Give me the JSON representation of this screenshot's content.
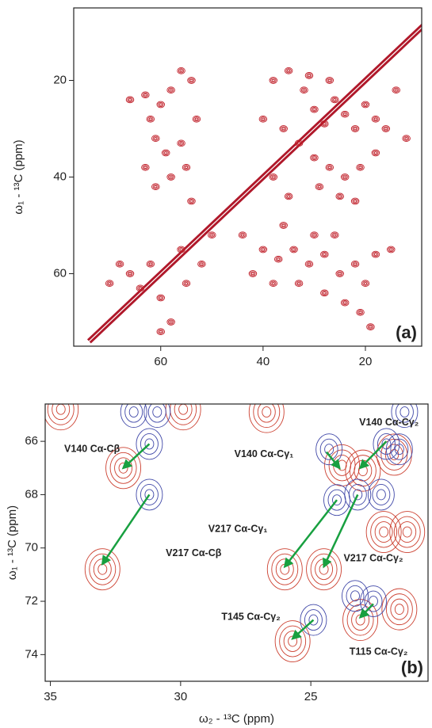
{
  "chart_data": [
    {
      "type": "contour",
      "xlim": [
        77,
        9
      ],
      "ylim": [
        5,
        75
      ],
      "xticks": [
        60,
        40,
        20
      ],
      "yticks": [
        20,
        40,
        60
      ],
      "ylabel": "ω₁ - ¹³C (ppm)",
      "panel_label": "(a)",
      "diagonal": {
        "x": [
          74,
          8
        ],
        "y": [
          74,
          8
        ],
        "color": "#b0182a"
      },
      "series": [
        {
          "color": "#c0202a",
          "x": [
            66,
            63,
            62,
            60,
            58,
            56,
            54,
            61,
            59,
            56,
            53,
            55,
            58,
            61,
            54,
            63,
            66,
            64,
            62,
            60,
            58,
            60,
            55,
            52,
            56,
            50,
            68,
            70,
            38,
            35,
            32,
            30,
            28,
            26,
            24,
            22,
            20,
            18,
            36,
            40,
            33,
            30,
            27,
            24,
            21,
            18,
            16,
            38,
            35,
            29,
            25,
            22,
            14,
            12,
            31,
            27,
            40,
            37,
            34,
            31,
            28,
            25,
            22,
            20,
            18,
            15,
            38,
            33,
            28,
            24,
            21,
            19,
            42,
            44,
            30,
            26,
            36
          ],
          "y": [
            24,
            23,
            28,
            25,
            22,
            18,
            20,
            32,
            35,
            33,
            28,
            38,
            40,
            42,
            45,
            38,
            60,
            63,
            58,
            65,
            70,
            72,
            62,
            58,
            55,
            52,
            58,
            62,
            20,
            18,
            22,
            26,
            29,
            24,
            27,
            30,
            25,
            28,
            30,
            28,
            33,
            36,
            38,
            40,
            38,
            35,
            30,
            40,
            44,
            42,
            44,
            45,
            22,
            32,
            19,
            20,
            55,
            57,
            55,
            58,
            56,
            60,
            58,
            62,
            56,
            55,
            62,
            62,
            64,
            66,
            68,
            71,
            60,
            52,
            52,
            52,
            50
          ]
        }
      ]
    },
    {
      "type": "contour",
      "xlim": [
        35.2,
        20.5
      ],
      "ylim": [
        64.6,
        75
      ],
      "xticks": [
        35,
        30,
        25
      ],
      "yticks": [
        66,
        68,
        70,
        72,
        74
      ],
      "xlabel": "ω₂ - ¹³C (ppm)",
      "ylabel": "ω₁ - ¹³C (ppm)",
      "panel_label": "(b)",
      "annotation_color": "#18a040",
      "series": [
        {
          "color": "#cc4030",
          "x": [
            32.2,
            33.0,
            26.0,
            24.5,
            23.8,
            23.0,
            21.8,
            22.2,
            21.3,
            25.7,
            23.1,
            21.6,
            34.6,
            29.9,
            26.7
          ],
          "y": [
            67.0,
            70.8,
            70.8,
            70.8,
            66.9,
            67.1,
            66.5,
            69.4,
            69.4,
            73.5,
            72.7,
            72.3,
            64.8,
            64.8,
            64.9
          ]
        },
        {
          "color": "#4048a8",
          "x": [
            31.2,
            31.2,
            31.8,
            30.9,
            24.3,
            24.0,
            23.2,
            22.1,
            21.6,
            22.3,
            22.6,
            24.9,
            23.3,
            21.4
          ],
          "y": [
            66.1,
            68.0,
            64.9,
            64.9,
            66.3,
            68.2,
            68.0,
            66.1,
            66.3,
            68.0,
            72.0,
            72.7,
            71.8,
            64.9
          ]
        }
      ],
      "annotations": [
        {
          "text": "V140 Cα-Cβ",
          "start": [
            31.2,
            66.1
          ],
          "xy": [
            32.2,
            67.0
          ],
          "xytext": [
            33.4,
            66.3
          ]
        },
        {
          "text": "V217 Cα-Cβ",
          "start": [
            31.2,
            68.0
          ],
          "xy": [
            33.0,
            70.6
          ],
          "xytext": [
            29.5,
            70.2
          ]
        },
        {
          "text": "V140 Cα-Cγ₁",
          "start": [
            24.4,
            66.4
          ],
          "xy": [
            23.9,
            67.0
          ],
          "xytext": [
            26.8,
            66.5
          ]
        },
        {
          "text": "V140 Cα-Cγ₂",
          "start": [
            22.1,
            66.0
          ],
          "xy": [
            23.1,
            67.0
          ],
          "xytext": [
            22.0,
            65.3
          ]
        },
        {
          "text": "V217 Cα-Cγ₁",
          "start": [
            24.0,
            68.2
          ],
          "xy": [
            26.0,
            70.7
          ],
          "xytext": [
            27.8,
            69.3
          ]
        },
        {
          "text": "V217 Cα-Cγ₂",
          "start": [
            23.2,
            68.0
          ],
          "xy": [
            24.5,
            70.7
          ],
          "xytext": [
            22.6,
            70.4
          ]
        },
        {
          "text": "T145 Cα-Cγ₂",
          "start": [
            24.9,
            72.7
          ],
          "xy": [
            25.7,
            73.4
          ],
          "xytext": [
            27.3,
            72.6
          ]
        },
        {
          "text": "T115 Cα-Cγ₂",
          "start": [
            22.6,
            72.1
          ],
          "xy": [
            23.1,
            72.6
          ],
          "xytext": [
            22.4,
            73.9
          ]
        }
      ]
    }
  ]
}
